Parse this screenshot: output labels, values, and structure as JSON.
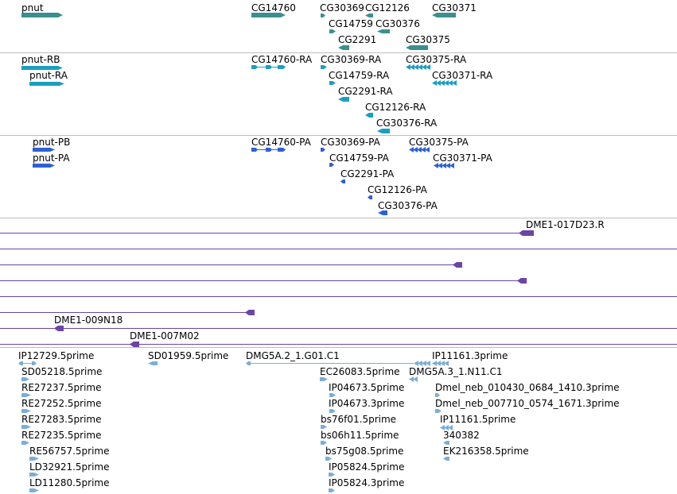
{
  "colors": {
    "gene": "#3b8f8f",
    "transcript": "#1a9fc2",
    "protein": "#2b62d4",
    "clone": "#6a45a6",
    "est": "#7aaed8",
    "separator": "#bdbdbd"
  },
  "genes": [
    {
      "label": "pnut",
      "dir": "right"
    },
    {
      "label": "CG14760",
      "dir": "right"
    },
    {
      "label": "CG30369",
      "dir": "right"
    },
    {
      "label": "CG12126",
      "dir": "left"
    },
    {
      "label": "CG30371",
      "dir": "left"
    },
    {
      "label": "CG14759",
      "dir": "right"
    },
    {
      "label": "CG30376",
      "dir": "left"
    },
    {
      "label": "CG2291",
      "dir": "left"
    },
    {
      "label": "CG30375",
      "dir": "left"
    }
  ],
  "transcripts": [
    {
      "label": "pnut-RB"
    },
    {
      "label": "pnut-RA"
    },
    {
      "label": "CG14760-RA"
    },
    {
      "label": "CG30369-RA"
    },
    {
      "label": "CG30375-RA"
    },
    {
      "label": "CG14759-RA"
    },
    {
      "label": "CG30371-RA"
    },
    {
      "label": "CG2291-RA"
    },
    {
      "label": "CG12126-RA"
    },
    {
      "label": "CG30376-RA"
    }
  ],
  "proteins": [
    {
      "label": "pnut-PB"
    },
    {
      "label": "pnut-PA"
    },
    {
      "label": "CG14760-PA"
    },
    {
      "label": "CG30369-PA"
    },
    {
      "label": "CG30375-PA"
    },
    {
      "label": "CG14759-PA"
    },
    {
      "label": "CG30371-PA"
    },
    {
      "label": "CG2291-PA"
    },
    {
      "label": "CG12126-PA"
    },
    {
      "label": "CG30376-PA"
    }
  ],
  "clones": [
    {
      "label": "DME1-017D23.R"
    },
    {
      "label": ""
    },
    {
      "label": ""
    },
    {
      "label": ""
    },
    {
      "label": ""
    },
    {
      "label": "DME1-009N18"
    },
    {
      "label": "DME1-007M02"
    }
  ],
  "ests": [
    {
      "label": "IP12729.5prime"
    },
    {
      "label": "SD01959.5prime"
    },
    {
      "label": "DMG5A.2_1.G01.C1"
    },
    {
      "label": "IP11161.3prime"
    },
    {
      "label": "SD05218.5prime"
    },
    {
      "label": "EC26083.5prime"
    },
    {
      "label": "DMG5A.3_1.N11.C1"
    },
    {
      "label": "RE27237.5prime"
    },
    {
      "label": "IP04673.5prime"
    },
    {
      "label": "Dmel_neb_010430_0684_1410.3prime"
    },
    {
      "label": "RE27252.5prime"
    },
    {
      "label": "IP04673.3prime"
    },
    {
      "label": "Dmel_neb_007710_0574_1671.3prime"
    },
    {
      "label": "RE27283.5prime"
    },
    {
      "label": "bs76f01.5prime"
    },
    {
      "label": "IP11161.5prime"
    },
    {
      "label": "RE27235.5prime"
    },
    {
      "label": "bs06h11.5prime"
    },
    {
      "label": "340382"
    },
    {
      "label": "RE56757.5prime"
    },
    {
      "label": "bs75g08.5prime"
    },
    {
      "label": "EK216358.5prime"
    },
    {
      "label": "LD32921.5prime"
    },
    {
      "label": "IP05824.5prime"
    },
    {
      "label": "LD11280.5prime"
    },
    {
      "label": "IP05824.3prime"
    }
  ]
}
